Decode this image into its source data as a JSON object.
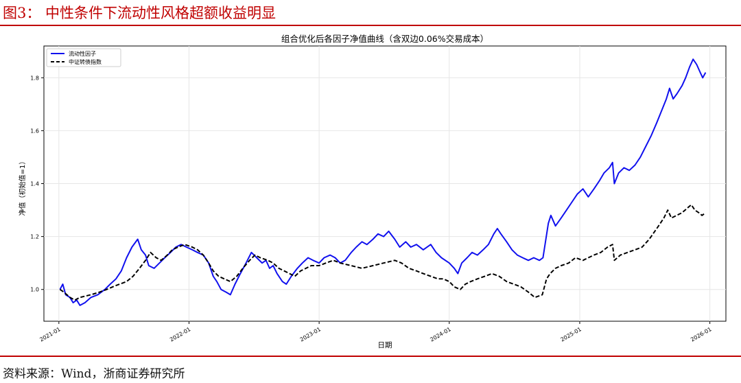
{
  "figure": {
    "title": "图3：  中性条件下流动性风格超额收益明显",
    "source": "资料来源：Wind，浙商证券研究所"
  },
  "colors": {
    "accent": "#c00000",
    "factor": "#1010ee",
    "index": "#000000"
  },
  "chart_data": {
    "type": "line",
    "title": "组合优化后各因子净值曲线（含双边0.06%交易成本）",
    "xlabel": "日期",
    "ylabel": "净值（初始值=1）",
    "xlim": [
      "2020-11-20",
      "2026-02-15"
    ],
    "ylim": [
      0.88,
      1.92
    ],
    "yticks": [
      1.0,
      1.2,
      1.4,
      1.6,
      1.8
    ],
    "ytick_labels": [
      "1.0",
      "1.2",
      "1.4",
      "1.6",
      "1.8"
    ],
    "xticks": [
      "2021-01-01",
      "2022-01-01",
      "2023-01-01",
      "2024-01-01",
      "2025-01-01",
      "2026-01-01"
    ],
    "xtick_labels": [
      "2021-01",
      "2022-01",
      "2023-01",
      "2024-01",
      "2025-01",
      "2026-01"
    ],
    "grid": true,
    "legend_position": "top-left",
    "series": [
      {
        "name": "流动性因子",
        "color": "#1010ee",
        "style": "solid",
        "points": [
          [
            "2021-01-04",
            1.0
          ],
          [
            "2021-01-12",
            1.02
          ],
          [
            "2021-01-20",
            0.98
          ],
          [
            "2021-02-01",
            0.97
          ],
          [
            "2021-02-10",
            0.95
          ],
          [
            "2021-02-20",
            0.96
          ],
          [
            "2021-03-01",
            0.94
          ],
          [
            "2021-03-15",
            0.95
          ],
          [
            "2021-04-01",
            0.97
          ],
          [
            "2021-04-20",
            0.98
          ],
          [
            "2021-05-10",
            1.0
          ],
          [
            "2021-05-25",
            1.02
          ],
          [
            "2021-06-10",
            1.04
          ],
          [
            "2021-06-25",
            1.07
          ],
          [
            "2021-07-10",
            1.12
          ],
          [
            "2021-07-25",
            1.16
          ],
          [
            "2021-08-10",
            1.19
          ],
          [
            "2021-08-20",
            1.15
          ],
          [
            "2021-09-01",
            1.13
          ],
          [
            "2021-09-10",
            1.09
          ],
          [
            "2021-09-25",
            1.08
          ],
          [
            "2021-10-10",
            1.1
          ],
          [
            "2021-10-25",
            1.12
          ],
          [
            "2021-11-10",
            1.14
          ],
          [
            "2021-11-25",
            1.16
          ],
          [
            "2021-12-10",
            1.17
          ],
          [
            "2021-12-25",
            1.16
          ],
          [
            "2022-01-10",
            1.15
          ],
          [
            "2022-01-25",
            1.14
          ],
          [
            "2022-02-10",
            1.13
          ],
          [
            "2022-02-25",
            1.1
          ],
          [
            "2022-03-10",
            1.05
          ],
          [
            "2022-03-20",
            1.03
          ],
          [
            "2022-04-01",
            1.0
          ],
          [
            "2022-04-15",
            0.99
          ],
          [
            "2022-04-27",
            0.98
          ],
          [
            "2022-05-10",
            1.02
          ],
          [
            "2022-05-25",
            1.06
          ],
          [
            "2022-06-10",
            1.1
          ],
          [
            "2022-06-25",
            1.14
          ],
          [
            "2022-07-10",
            1.12
          ],
          [
            "2022-07-25",
            1.1
          ],
          [
            "2022-08-05",
            1.11
          ],
          [
            "2022-08-15",
            1.08
          ],
          [
            "2022-08-25",
            1.09
          ],
          [
            "2022-09-05",
            1.06
          ],
          [
            "2022-09-20",
            1.03
          ],
          [
            "2022-10-01",
            1.02
          ],
          [
            "2022-10-15",
            1.05
          ],
          [
            "2022-11-01",
            1.08
          ],
          [
            "2022-11-15",
            1.1
          ],
          [
            "2022-12-01",
            1.12
          ],
          [
            "2022-12-15",
            1.11
          ],
          [
            "2023-01-01",
            1.1
          ],
          [
            "2023-01-15",
            1.12
          ],
          [
            "2023-02-01",
            1.13
          ],
          [
            "2023-02-15",
            1.12
          ],
          [
            "2023-03-01",
            1.1
          ],
          [
            "2023-03-15",
            1.11
          ],
          [
            "2023-04-01",
            1.14
          ],
          [
            "2023-04-15",
            1.16
          ],
          [
            "2023-05-01",
            1.18
          ],
          [
            "2023-05-15",
            1.17
          ],
          [
            "2023-06-01",
            1.19
          ],
          [
            "2023-06-15",
            1.21
          ],
          [
            "2023-07-01",
            1.2
          ],
          [
            "2023-07-15",
            1.22
          ],
          [
            "2023-08-01",
            1.19
          ],
          [
            "2023-08-15",
            1.16
          ],
          [
            "2023-09-01",
            1.18
          ],
          [
            "2023-09-15",
            1.16
          ],
          [
            "2023-10-01",
            1.17
          ],
          [
            "2023-10-20",
            1.15
          ],
          [
            "2023-11-10",
            1.17
          ],
          [
            "2023-11-25",
            1.14
          ],
          [
            "2023-12-10",
            1.12
          ],
          [
            "2024-01-01",
            1.1
          ],
          [
            "2024-01-15",
            1.08
          ],
          [
            "2024-01-25",
            1.06
          ],
          [
            "2024-02-05",
            1.1
          ],
          [
            "2024-02-20",
            1.12
          ],
          [
            "2024-03-05",
            1.14
          ],
          [
            "2024-03-20",
            1.13
          ],
          [
            "2024-04-05",
            1.15
          ],
          [
            "2024-04-20",
            1.17
          ],
          [
            "2024-05-05",
            1.21
          ],
          [
            "2024-05-15",
            1.23
          ],
          [
            "2024-05-25",
            1.21
          ],
          [
            "2024-06-10",
            1.18
          ],
          [
            "2024-06-25",
            1.15
          ],
          [
            "2024-07-10",
            1.13
          ],
          [
            "2024-07-25",
            1.12
          ],
          [
            "2024-08-10",
            1.11
          ],
          [
            "2024-08-25",
            1.12
          ],
          [
            "2024-09-10",
            1.11
          ],
          [
            "2024-09-20",
            1.12
          ],
          [
            "2024-09-28",
            1.19
          ],
          [
            "2024-10-05",
            1.25
          ],
          [
            "2024-10-12",
            1.28
          ],
          [
            "2024-10-25",
            1.24
          ],
          [
            "2024-11-10",
            1.27
          ],
          [
            "2024-11-25",
            1.3
          ],
          [
            "2024-12-10",
            1.33
          ],
          [
            "2024-12-25",
            1.36
          ],
          [
            "2025-01-10",
            1.38
          ],
          [
            "2025-01-25",
            1.35
          ],
          [
            "2025-02-10",
            1.38
          ],
          [
            "2025-02-25",
            1.41
          ],
          [
            "2025-03-10",
            1.44
          ],
          [
            "2025-03-25",
            1.46
          ],
          [
            "2025-04-03",
            1.48
          ],
          [
            "2025-04-08",
            1.4
          ],
          [
            "2025-04-20",
            1.44
          ],
          [
            "2025-05-05",
            1.46
          ],
          [
            "2025-05-20",
            1.45
          ],
          [
            "2025-06-05",
            1.47
          ],
          [
            "2025-06-20",
            1.5
          ],
          [
            "2025-07-05",
            1.54
          ],
          [
            "2025-07-20",
            1.58
          ],
          [
            "2025-08-05",
            1.63
          ],
          [
            "2025-08-20",
            1.68
          ],
          [
            "2025-09-01",
            1.72
          ],
          [
            "2025-09-10",
            1.76
          ],
          [
            "2025-09-20",
            1.72
          ],
          [
            "2025-10-01",
            1.74
          ],
          [
            "2025-10-15",
            1.77
          ],
          [
            "2025-10-25",
            1.8
          ],
          [
            "2025-11-05",
            1.84
          ],
          [
            "2025-11-15",
            1.87
          ],
          [
            "2025-11-25",
            1.85
          ],
          [
            "2025-12-05",
            1.82
          ],
          [
            "2025-12-12",
            1.8
          ],
          [
            "2025-12-20",
            1.82
          ]
        ]
      },
      {
        "name": "中证转债指数",
        "color": "#000000",
        "style": "dashed",
        "points": [
          [
            "2021-01-04",
            1.0
          ],
          [
            "2021-01-15",
            0.99
          ],
          [
            "2021-02-01",
            0.97
          ],
          [
            "2021-02-15",
            0.96
          ],
          [
            "2021-03-01",
            0.97
          ],
          [
            "2021-04-01",
            0.98
          ],
          [
            "2021-04-25",
            0.99
          ],
          [
            "2021-05-15",
            1.0
          ],
          [
            "2021-06-01",
            1.01
          ],
          [
            "2021-06-20",
            1.02
          ],
          [
            "2021-07-10",
            1.03
          ],
          [
            "2021-07-28",
            1.05
          ],
          [
            "2021-08-15",
            1.08
          ],
          [
            "2021-09-01",
            1.11
          ],
          [
            "2021-09-15",
            1.14
          ],
          [
            "2021-10-01",
            1.12
          ],
          [
            "2021-10-15",
            1.11
          ],
          [
            "2021-11-01",
            1.13
          ],
          [
            "2021-11-15",
            1.15
          ],
          [
            "2021-12-01",
            1.16
          ],
          [
            "2021-12-20",
            1.17
          ],
          [
            "2022-01-10",
            1.16
          ],
          [
            "2022-01-25",
            1.15
          ],
          [
            "2022-02-10",
            1.13
          ],
          [
            "2022-02-25",
            1.1
          ],
          [
            "2022-03-10",
            1.07
          ],
          [
            "2022-03-25",
            1.05
          ],
          [
            "2022-04-10",
            1.04
          ],
          [
            "2022-04-27",
            1.03
          ],
          [
            "2022-05-15",
            1.05
          ],
          [
            "2022-06-01",
            1.08
          ],
          [
            "2022-06-20",
            1.11
          ],
          [
            "2022-07-05",
            1.13
          ],
          [
            "2022-07-20",
            1.12
          ],
          [
            "2022-08-10",
            1.11
          ],
          [
            "2022-08-25",
            1.1
          ],
          [
            "2022-09-10",
            1.08
          ],
          [
            "2022-09-25",
            1.07
          ],
          [
            "2022-10-10",
            1.06
          ],
          [
            "2022-10-25",
            1.05
          ],
          [
            "2022-11-10",
            1.07
          ],
          [
            "2022-11-25",
            1.08
          ],
          [
            "2022-12-10",
            1.09
          ],
          [
            "2023-01-01",
            1.09
          ],
          [
            "2023-01-20",
            1.1
          ],
          [
            "2023-02-10",
            1.11
          ],
          [
            "2023-03-01",
            1.1
          ],
          [
            "2023-04-01",
            1.09
          ],
          [
            "2023-05-01",
            1.08
          ],
          [
            "2023-06-01",
            1.09
          ],
          [
            "2023-07-01",
            1.1
          ],
          [
            "2023-08-01",
            1.11
          ],
          [
            "2023-08-20",
            1.1
          ],
          [
            "2023-09-10",
            1.08
          ],
          [
            "2023-10-01",
            1.07
          ],
          [
            "2023-10-20",
            1.06
          ],
          [
            "2023-11-10",
            1.05
          ],
          [
            "2023-11-30",
            1.04
          ],
          [
            "2023-12-15",
            1.04
          ],
          [
            "2024-01-01",
            1.03
          ],
          [
            "2024-01-15",
            1.01
          ],
          [
            "2024-02-01",
            1.0
          ],
          [
            "2024-02-15",
            1.02
          ],
          [
            "2024-03-01",
            1.03
          ],
          [
            "2024-03-20",
            1.04
          ],
          [
            "2024-04-10",
            1.05
          ],
          [
            "2024-04-30",
            1.06
          ],
          [
            "2024-05-20",
            1.05
          ],
          [
            "2024-06-10",
            1.03
          ],
          [
            "2024-06-30",
            1.02
          ],
          [
            "2024-07-20",
            1.01
          ],
          [
            "2024-08-10",
            0.99
          ],
          [
            "2024-08-28",
            0.97
          ],
          [
            "2024-09-18",
            0.98
          ],
          [
            "2024-09-30",
            1.04
          ],
          [
            "2024-10-10",
            1.06
          ],
          [
            "2024-10-25",
            1.08
          ],
          [
            "2024-11-10",
            1.09
          ],
          [
            "2024-12-01",
            1.1
          ],
          [
            "2024-12-20",
            1.12
          ],
          [
            "2025-01-10",
            1.11
          ],
          [
            "2025-01-25",
            1.12
          ],
          [
            "2025-02-10",
            1.13
          ],
          [
            "2025-03-01",
            1.14
          ],
          [
            "2025-03-20",
            1.16
          ],
          [
            "2025-04-03",
            1.17
          ],
          [
            "2025-04-08",
            1.11
          ],
          [
            "2025-04-25",
            1.13
          ],
          [
            "2025-05-15",
            1.14
          ],
          [
            "2025-06-05",
            1.15
          ],
          [
            "2025-06-25",
            1.16
          ],
          [
            "2025-07-15",
            1.19
          ],
          [
            "2025-08-05",
            1.23
          ],
          [
            "2025-08-25",
            1.27
          ],
          [
            "2025-09-05",
            1.3
          ],
          [
            "2025-09-15",
            1.27
          ],
          [
            "2025-09-30",
            1.28
          ],
          [
            "2025-10-15",
            1.29
          ],
          [
            "2025-11-01",
            1.31
          ],
          [
            "2025-11-10",
            1.32
          ],
          [
            "2025-11-20",
            1.3
          ],
          [
            "2025-12-01",
            1.29
          ],
          [
            "2025-12-10",
            1.28
          ],
          [
            "2025-12-20",
            1.29
          ]
        ]
      }
    ]
  }
}
